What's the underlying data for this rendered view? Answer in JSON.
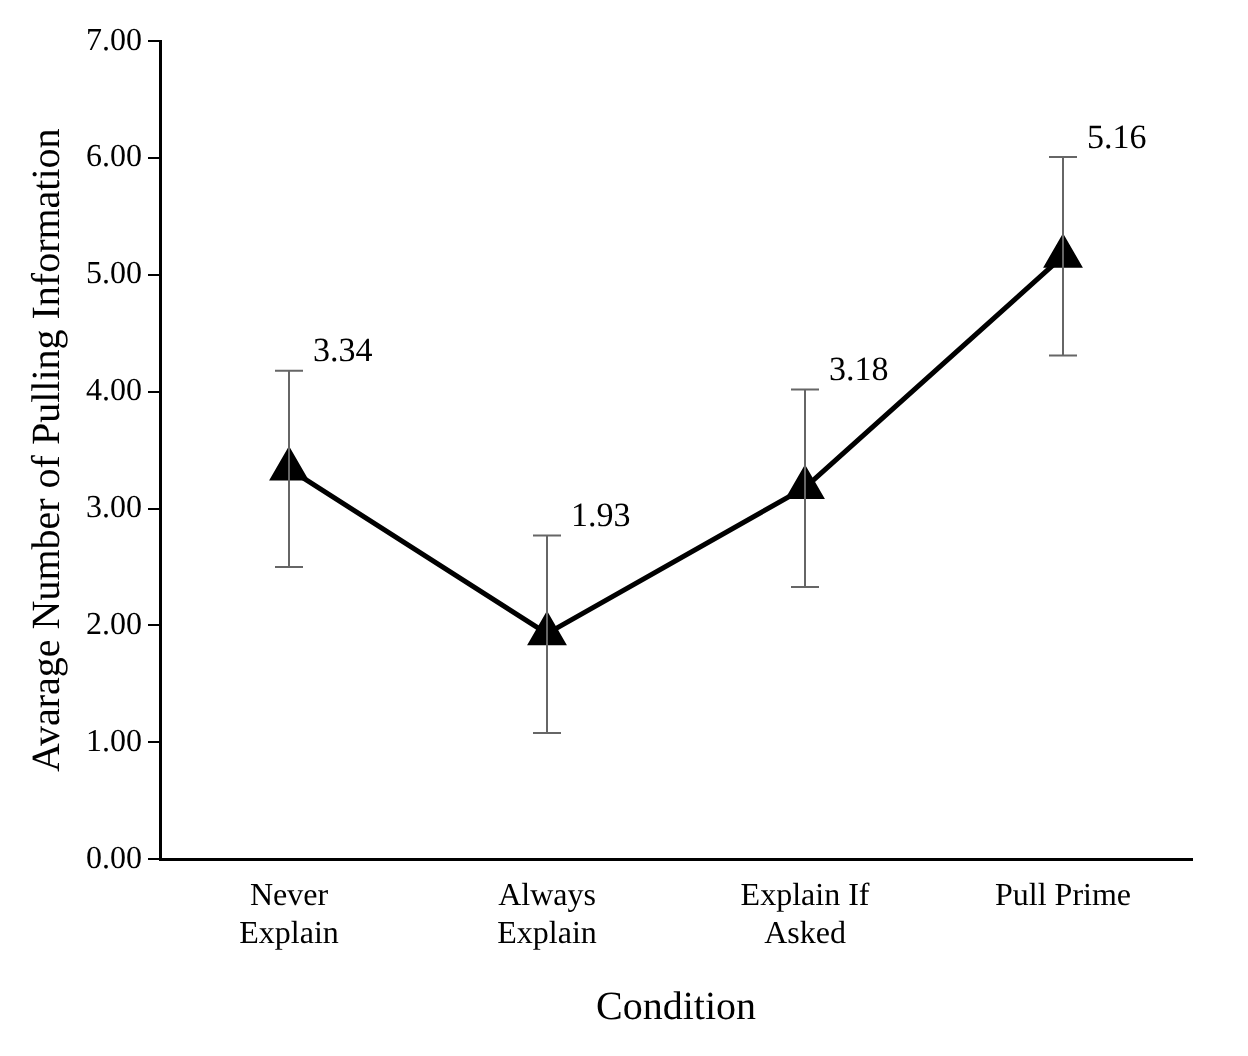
{
  "chart_data": {
    "type": "line",
    "xlabel": "Condition",
    "ylabel": "Avarage Number of Pulling Information",
    "categories": [
      "Never Explain",
      "Always Explain",
      "Explain If Asked",
      "Pull Prime"
    ],
    "values": [
      3.34,
      1.93,
      3.18,
      5.16
    ],
    "errors": [
      [
        2.5,
        4.18
      ],
      [
        1.08,
        2.77
      ],
      [
        2.33,
        4.02
      ],
      [
        4.31,
        6.01
      ]
    ],
    "color": "#000000",
    "marker": "triangle",
    "line_style": "solid",
    "data_labels": true,
    "grid": false,
    "legend": false,
    "ylim": [
      0,
      7
    ],
    "yticks": [
      {
        "value": 0,
        "label": "0.00"
      },
      {
        "value": 1,
        "label": "1.00"
      },
      {
        "value": 2,
        "label": "2.00"
      },
      {
        "value": 3,
        "label": "3.00"
      },
      {
        "value": 4,
        "label": "4.00"
      },
      {
        "value": 5,
        "label": "5.00"
      },
      {
        "value": 6,
        "label": "6.00"
      },
      {
        "value": 7,
        "label": "7.00"
      }
    ]
  }
}
